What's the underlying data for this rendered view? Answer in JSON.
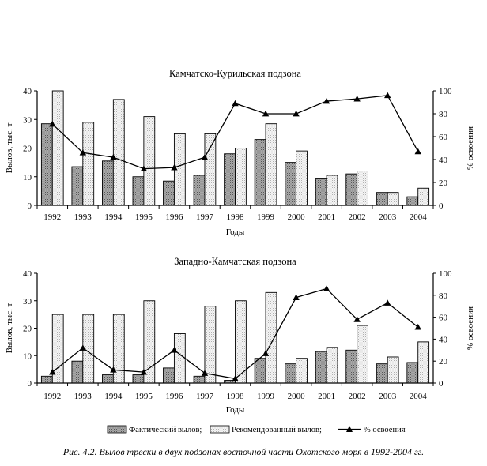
{
  "chart_data": [
    {
      "type": "bar",
      "title": "Камчатско-Курильская подзона",
      "xlabel": "Годы",
      "ylabel": "Вылов, тыс. т",
      "y2label": "% освоения",
      "ylim": [
        0,
        40
      ],
      "yticks": [
        "0",
        "10",
        "20",
        "30",
        "40"
      ],
      "y2lim": [
        0,
        100
      ],
      "y2ticks": [
        "0",
        "20",
        "40",
        "60",
        "80",
        "100"
      ],
      "categories": [
        "1992",
        "1993",
        "1994",
        "1995",
        "1996",
        "1997",
        "1998",
        "1999",
        "2000",
        "2001",
        "2002",
        "2003",
        "2004"
      ],
      "series": [
        {
          "name": "Фактический вылов;",
          "values": [
            28.5,
            13.5,
            15.5,
            10,
            8.5,
            10.5,
            18,
            23,
            15,
            9.5,
            11,
            4.5,
            3
          ]
        },
        {
          "name": "Рекомендованный вылов;",
          "values": [
            40,
            29,
            37,
            31,
            25,
            25,
            20,
            28.5,
            19,
            10.5,
            12,
            4.5,
            6
          ]
        },
        {
          "name": "% освоения",
          "axis": "right",
          "values": [
            71,
            46,
            42,
            32,
            33,
            42,
            89,
            80,
            80,
            91,
            93,
            96,
            47
          ]
        }
      ]
    },
    {
      "type": "bar",
      "title": "Западно-Камчатская подзона",
      "xlabel": "Годы",
      "ylabel": "Вылов, тыс. т",
      "y2label": "% освоения",
      "ylim": [
        0,
        40
      ],
      "yticks": [
        "0",
        "10",
        "20",
        "30",
        "40"
      ],
      "y2lim": [
        0,
        100
      ],
      "y2ticks": [
        "0",
        "20",
        "40",
        "60",
        "80",
        "100"
      ],
      "categories": [
        "1992",
        "1993",
        "1994",
        "1995",
        "1996",
        "1997",
        "1998",
        "1999",
        "2000",
        "2001",
        "2002",
        "2003",
        "2004"
      ],
      "series": [
        {
          "name": "Фактический вылов;",
          "values": [
            2.5,
            8,
            3,
            3,
            5.5,
            2.5,
            1,
            9,
            7,
            11.5,
            12,
            7,
            7.5
          ]
        },
        {
          "name": "Рекомендованный вылов;",
          "values": [
            25,
            25,
            25,
            30,
            18,
            28,
            30,
            33,
            9,
            13,
            21,
            9.5,
            15
          ]
        },
        {
          "name": "% освоения",
          "axis": "right",
          "values": [
            10,
            32,
            12,
            10,
            30,
            9,
            4,
            27,
            78,
            86,
            58,
            73,
            51
          ]
        }
      ]
    }
  ],
  "legend": [
    {
      "label": "Фактический вылов;",
      "kind": "actual"
    },
    {
      "label": "Рекомендованный вылов;",
      "kind": "recommended"
    },
    {
      "label": "% освоения",
      "kind": "line"
    }
  ],
  "caption": "Рис. 4.2. Вылов трески в двух подзонах восточной части Охотского моря в 1992-2004 гг.",
  "colors": {
    "actual": "#9a9a9a",
    "recommended": "#ebebeb",
    "line": "#000000",
    "axis": "#000000"
  }
}
